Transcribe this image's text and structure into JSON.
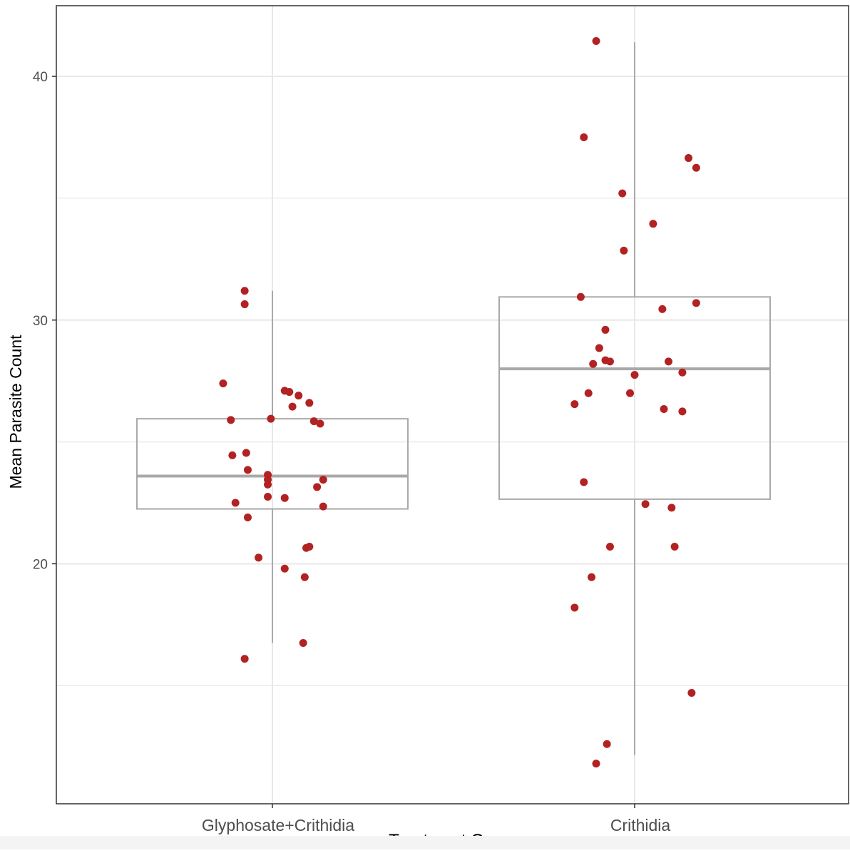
{
  "chart_data": {
    "type": "box",
    "xlabel": "Treatment Group",
    "ylabel": "Mean Parasite Count",
    "ylim": [
      10.15,
      42.9
    ],
    "yticks": [
      20,
      30,
      40
    ],
    "ygrid_minor": [
      15,
      25,
      35
    ],
    "grid": true,
    "legend": "none",
    "categories": [
      "Glyphosate+Crithidia",
      "Crithidia"
    ],
    "boxes": [
      {
        "category": "Glyphosate+Crithidia",
        "q1": 22.25,
        "median": 23.6,
        "q3": 25.95,
        "whisker_low": 16.75,
        "whisker_high": 31.2
      },
      {
        "category": "Crithidia",
        "q1": 22.65,
        "median": 28.0,
        "q3": 30.95,
        "whisker_low": 12.15,
        "whisker_high": 41.4
      }
    ],
    "points": [
      [
        {
          "jitter": -0.18,
          "y": 31.2
        },
        {
          "jitter": -0.18,
          "y": 30.65
        },
        {
          "jitter": -0.32,
          "y": 27.4
        },
        {
          "jitter": 0.08,
          "y": 27.1
        },
        {
          "jitter": 0.11,
          "y": 27.05
        },
        {
          "jitter": 0.17,
          "y": 26.9
        },
        {
          "jitter": 0.24,
          "y": 26.6
        },
        {
          "jitter": 0.13,
          "y": 26.45
        },
        {
          "jitter": -0.27,
          "y": 25.9
        },
        {
          "jitter": -0.01,
          "y": 25.95
        },
        {
          "jitter": 0.27,
          "y": 25.85
        },
        {
          "jitter": 0.31,
          "y": 25.75
        },
        {
          "jitter": -0.26,
          "y": 24.45
        },
        {
          "jitter": -0.17,
          "y": 24.55
        },
        {
          "jitter": -0.16,
          "y": 23.85
        },
        {
          "jitter": -0.03,
          "y": 23.65
        },
        {
          "jitter": -0.03,
          "y": 23.45
        },
        {
          "jitter": -0.03,
          "y": 23.25
        },
        {
          "jitter": 0.33,
          "y": 23.45
        },
        {
          "jitter": 0.29,
          "y": 23.15
        },
        {
          "jitter": -0.03,
          "y": 22.75
        },
        {
          "jitter": 0.08,
          "y": 22.7
        },
        {
          "jitter": -0.24,
          "y": 22.5
        },
        {
          "jitter": 0.33,
          "y": 22.35
        },
        {
          "jitter": -0.16,
          "y": 21.9
        },
        {
          "jitter": 0.22,
          "y": 20.65
        },
        {
          "jitter": 0.24,
          "y": 20.7
        },
        {
          "jitter": -0.09,
          "y": 20.25
        },
        {
          "jitter": 0.08,
          "y": 19.8
        },
        {
          "jitter": 0.21,
          "y": 19.45
        },
        {
          "jitter": 0.2,
          "y": 16.75
        },
        {
          "jitter": -0.18,
          "y": 16.1
        }
      ],
      [
        {
          "jitter": -0.25,
          "y": 41.45
        },
        {
          "jitter": -0.33,
          "y": 37.5
        },
        {
          "jitter": 0.35,
          "y": 36.65
        },
        {
          "jitter": 0.4,
          "y": 36.25
        },
        {
          "jitter": -0.08,
          "y": 35.2
        },
        {
          "jitter": 0.12,
          "y": 33.95
        },
        {
          "jitter": -0.07,
          "y": 32.85
        },
        {
          "jitter": -0.35,
          "y": 30.95
        },
        {
          "jitter": 0.4,
          "y": 30.7
        },
        {
          "jitter": 0.18,
          "y": 30.45
        },
        {
          "jitter": -0.19,
          "y": 29.6
        },
        {
          "jitter": -0.23,
          "y": 28.85
        },
        {
          "jitter": -0.19,
          "y": 28.35
        },
        {
          "jitter": -0.16,
          "y": 28.3
        },
        {
          "jitter": -0.27,
          "y": 28.2
        },
        {
          "jitter": 0.22,
          "y": 28.3
        },
        {
          "jitter": 0.31,
          "y": 27.85
        },
        {
          "jitter": 0.0,
          "y": 27.75
        },
        {
          "jitter": -0.3,
          "y": 27.0
        },
        {
          "jitter": -0.03,
          "y": 27.0
        },
        {
          "jitter": -0.39,
          "y": 26.55
        },
        {
          "jitter": 0.19,
          "y": 26.35
        },
        {
          "jitter": 0.31,
          "y": 26.25
        },
        {
          "jitter": -0.33,
          "y": 23.35
        },
        {
          "jitter": 0.07,
          "y": 22.45
        },
        {
          "jitter": 0.24,
          "y": 22.3
        },
        {
          "jitter": -0.16,
          "y": 20.7
        },
        {
          "jitter": 0.26,
          "y": 20.7
        },
        {
          "jitter": -0.28,
          "y": 19.45
        },
        {
          "jitter": -0.39,
          "y": 18.2
        },
        {
          "jitter": 0.37,
          "y": 14.7
        },
        {
          "jitter": -0.18,
          "y": 12.6
        },
        {
          "jitter": -0.25,
          "y": 11.8
        }
      ]
    ],
    "colors": {
      "points": "#b22222",
      "box": "#a9a9a9",
      "grid": "#e8e8e8",
      "panel_border": "#333333",
      "axis_text": "#4d4d4d",
      "label_text": "#000000"
    }
  }
}
